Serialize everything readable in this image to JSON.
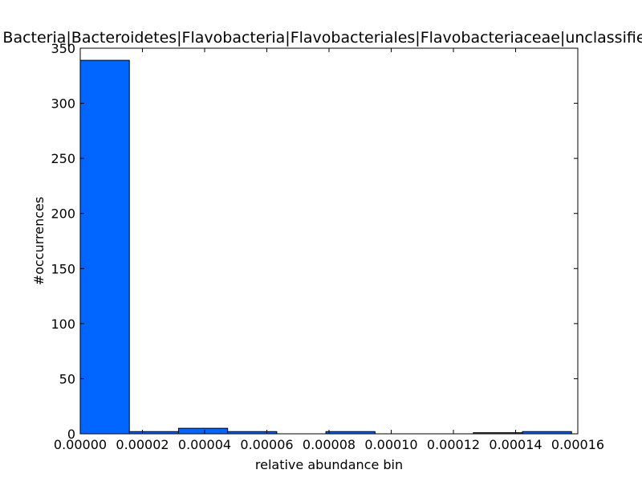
{
  "chart_data": {
    "type": "bar",
    "title": "Bacteria|Bacteroidetes|Flavobacteria|Flavobacteriales|Flavobacteriaceae|unclassified",
    "xlabel": "relative abundance bin",
    "ylabel": "#occurrences",
    "xlim": [
      0,
      0.00016
    ],
    "ylim": [
      0,
      350
    ],
    "x_ticks": [
      "0.00000",
      "0.00002",
      "0.00004",
      "0.00006",
      "0.00008",
      "0.00010",
      "0.00012",
      "0.00014",
      "0.00016"
    ],
    "y_ticks": [
      "0",
      "50",
      "100",
      "150",
      "200",
      "250",
      "300",
      "350"
    ],
    "bin_edges": [
      0,
      1.58e-05,
      3.16e-05,
      4.74e-05,
      6.32e-05,
      7.9e-05,
      9.48e-05,
      0.0001106,
      0.0001264,
      0.0001422,
      0.000158
    ],
    "values": [
      339,
      2,
      5,
      2,
      0,
      2,
      0,
      0,
      1,
      2
    ],
    "grid": false,
    "bar_color": "#0066ff"
  }
}
